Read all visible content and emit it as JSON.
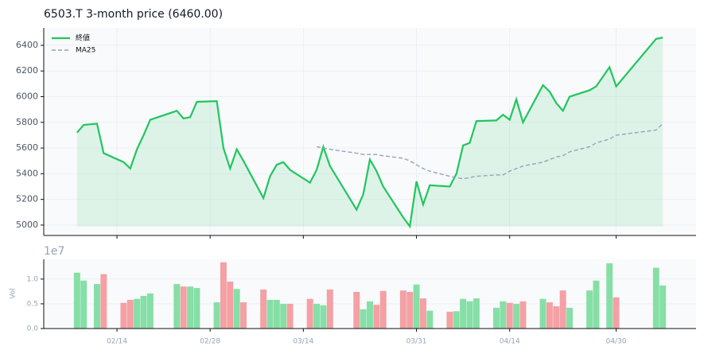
{
  "chart_data": [
    {
      "type": "line",
      "title": "6503.T  3-month price (6460.00)",
      "x": [
        "02/08",
        "02/09",
        "02/11",
        "02/12",
        "02/15",
        "02/16",
        "02/17",
        "02/18",
        "02/19",
        "02/23",
        "02/24",
        "02/25",
        "02/26",
        "03/01",
        "03/02",
        "03/03",
        "03/04",
        "03/05",
        "03/08",
        "03/09",
        "03/10",
        "03/11",
        "03/12",
        "03/15",
        "03/16",
        "03/17",
        "03/18",
        "03/22",
        "03/23",
        "03/24",
        "03/25",
        "03/26",
        "03/29",
        "03/30",
        "03/31",
        "04/01",
        "04/02",
        "04/05",
        "04/06",
        "04/07",
        "04/08",
        "04/09",
        "04/12",
        "04/13",
        "04/14",
        "04/15",
        "04/16",
        "04/19",
        "04/20",
        "04/21",
        "04/22",
        "04/23",
        "04/26",
        "04/27",
        "04/29",
        "04/30",
        "05/06",
        "05/07"
      ],
      "series": [
        {
          "name": "終値",
          "color": "#22c55e",
          "values": [
            5720,
            5780,
            5790,
            5560,
            5490,
            5440,
            5590,
            5700,
            5820,
            5890,
            5830,
            5840,
            5960,
            5965,
            5600,
            5440,
            5590,
            5500,
            5210,
            5380,
            5470,
            5490,
            5430,
            5330,
            5430,
            5610,
            5460,
            5120,
            5240,
            5510,
            5420,
            5300,
            5060,
            4990,
            5340,
            5160,
            5310,
            5300,
            5400,
            5620,
            5640,
            5810,
            5815,
            5860,
            5820,
            5980,
            5800,
            6090,
            6040,
            5950,
            5890,
            6000,
            6050,
            6080,
            6230,
            6080,
            6450,
            6460
          ]
        },
        {
          "name": "MA25",
          "color": "#94a3b8",
          "values": [
            null,
            null,
            null,
            null,
            null,
            null,
            null,
            null,
            null,
            null,
            null,
            null,
            null,
            null,
            null,
            null,
            null,
            null,
            null,
            null,
            null,
            null,
            null,
            null,
            5610,
            5600,
            5590,
            5560,
            5550,
            5550,
            5550,
            5540,
            5520,
            5500,
            5470,
            5440,
            5420,
            5380,
            5370,
            5360,
            5370,
            5380,
            5390,
            5390,
            5420,
            5440,
            5460,
            5490,
            5510,
            5530,
            5540,
            5570,
            5610,
            5640,
            5670,
            5700,
            5740,
            5790
          ]
        }
      ],
      "xlim": [
        "02/03",
        "05/12"
      ],
      "xticks": [
        "02/14",
        "02/28",
        "03/14",
        "03/31",
        "04/14",
        "04/30"
      ],
      "ylim": [
        4919,
        6536
      ],
      "yticks": [
        5000,
        5200,
        5400,
        5600,
        5800,
        6000,
        6200,
        6400
      ],
      "grid": true,
      "legend": "upper left"
    },
    {
      "type": "bar",
      "ylabel": "Vol",
      "offset_label": "1e7",
      "up_color": "#86dfa6",
      "down_color": "#f4a0a4",
      "values": [
        11300000,
        9700000,
        9000000,
        11000000,
        5200000,
        5800000,
        6000000,
        6600000,
        7100000,
        9000000,
        8500000,
        8500000,
        8200000,
        5300000,
        13400000,
        9500000,
        8000000,
        5300000,
        7900000,
        5800000,
        5800000,
        5000000,
        5000000,
        6000000,
        5000000,
        4700000,
        7900000,
        7400000,
        3900000,
        5500000,
        4800000,
        7600000,
        7700000,
        7400000,
        8900000,
        6100000,
        3600000,
        3400000,
        3500000,
        6000000,
        5500000,
        6100000,
        4200000,
        5500000,
        5200000,
        5000000,
        5500000,
        6000000,
        5300000,
        4500000,
        7700000,
        4200000,
        7700000,
        9700000,
        13200000,
        6300000,
        12300000,
        8700000
      ],
      "ylim": [
        0,
        14000000
      ],
      "yticks": [
        {
          "value": 0,
          "label": "0.0"
        },
        {
          "value": 5000000,
          "label": "0.5"
        },
        {
          "value": 10000000,
          "label": "1.0"
        }
      ]
    }
  ]
}
